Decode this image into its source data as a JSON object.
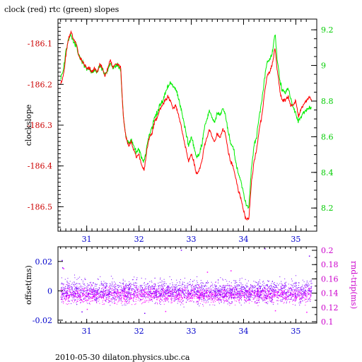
{
  "title": "clock (red) rtc (green) slopes",
  "footer": "2010-05-30  dilaton.physics.ubc.ca",
  "colors": {
    "clock": "#ff0000",
    "rtc": "#00ee00",
    "offset": "#7a00ff",
    "roundtrip": "#ff00ff",
    "top_left_axis": "#cc0000",
    "top_right_axis": "#00cc00",
    "bottom_left_axis": "#0000cc",
    "bottom_right_axis": "#cc00cc",
    "frame": "#000000"
  },
  "chart_data": [
    {
      "type": "line",
      "ylabel": "clockslope",
      "ylabel_right": "",
      "xlim": [
        30.45,
        35.4
      ],
      "ylim": [
        -186.56,
        -186.04
      ],
      "ylim_right": [
        8.07,
        9.26
      ],
      "x_ticks": [
        "31",
        "32",
        "33",
        "34",
        "35"
      ],
      "y_ticks": [
        "-186.1",
        "-186.2",
        "-186.3",
        "-186.4",
        "-186.5"
      ],
      "y_ticks_right": [
        "9.2",
        "9",
        "8.8",
        "8.6",
        "8.4",
        "8.2"
      ],
      "series": [
        {
          "name": "clock (red)",
          "axis": "left",
          "x": [
            30.5,
            30.55,
            30.6,
            30.65,
            30.7,
            30.75,
            30.8,
            30.85,
            30.9,
            30.95,
            31.0,
            31.05,
            31.1,
            31.15,
            31.2,
            31.25,
            31.3,
            31.35,
            31.4,
            31.45,
            31.5,
            31.55,
            31.6,
            31.65,
            31.7,
            31.75,
            31.8,
            31.85,
            31.9,
            31.95,
            32.0,
            32.05,
            32.1,
            32.15,
            32.2,
            32.25,
            32.3,
            32.35,
            32.4,
            32.45,
            32.5,
            32.55,
            32.6,
            32.65,
            32.7,
            32.75,
            32.8,
            32.85,
            32.9,
            32.95,
            33.0,
            33.05,
            33.1,
            33.15,
            33.2,
            33.25,
            33.3,
            33.35,
            33.4,
            33.45,
            33.5,
            33.55,
            33.6,
            33.65,
            33.7,
            33.75,
            33.8,
            33.85,
            33.9,
            33.95,
            34.0,
            34.05,
            34.1,
            34.15,
            34.2,
            34.25,
            34.3,
            34.35,
            34.4,
            34.45,
            34.5,
            34.55,
            34.6,
            34.65,
            34.7,
            34.75,
            34.8,
            34.85,
            34.9,
            34.95,
            35.0,
            35.05,
            35.1,
            35.15,
            35.2,
            35.25,
            35.3
          ],
          "values": [
            -186.2,
            -186.18,
            -186.13,
            -186.09,
            -186.07,
            -186.09,
            -186.1,
            -186.13,
            -186.14,
            -186.15,
            -186.16,
            -186.16,
            -186.17,
            -186.16,
            -186.17,
            -186.15,
            -186.16,
            -186.18,
            -186.16,
            -186.14,
            -186.16,
            -186.15,
            -186.15,
            -186.16,
            -186.28,
            -186.33,
            -186.35,
            -186.34,
            -186.36,
            -186.38,
            -186.37,
            -186.4,
            -186.41,
            -186.36,
            -186.33,
            -186.32,
            -186.29,
            -186.28,
            -186.26,
            -186.25,
            -186.24,
            -186.23,
            -186.24,
            -186.26,
            -186.25,
            -186.27,
            -186.3,
            -186.33,
            -186.36,
            -186.39,
            -186.37,
            -186.39,
            -186.42,
            -186.41,
            -186.39,
            -186.35,
            -186.33,
            -186.31,
            -186.33,
            -186.34,
            -186.32,
            -186.33,
            -186.31,
            -186.32,
            -186.36,
            -186.39,
            -186.4,
            -186.43,
            -186.46,
            -186.48,
            -186.51,
            -186.53,
            -186.53,
            -186.44,
            -186.39,
            -186.36,
            -186.31,
            -186.28,
            -186.22,
            -186.18,
            -186.17,
            -186.15,
            -186.11,
            -186.17,
            -186.22,
            -186.24,
            -186.24,
            -186.23,
            -186.25,
            -186.25,
            -186.24,
            -186.28,
            -186.26,
            -186.25,
            -186.24,
            -186.23,
            -186.24
          ]
        },
        {
          "name": "rtc (green)",
          "axis": "right",
          "x": [
            30.5,
            30.55,
            30.6,
            30.65,
            30.7,
            30.75,
            30.8,
            30.85,
            30.9,
            30.95,
            31.0,
            31.05,
            31.1,
            31.15,
            31.2,
            31.25,
            31.3,
            31.35,
            31.4,
            31.45,
            31.5,
            31.55,
            31.6,
            31.65,
            31.7,
            31.75,
            31.8,
            31.85,
            31.9,
            31.95,
            32.0,
            32.05,
            32.1,
            32.15,
            32.2,
            32.25,
            32.3,
            32.35,
            32.4,
            32.45,
            32.5,
            32.55,
            32.6,
            32.65,
            32.7,
            32.75,
            32.8,
            32.85,
            32.9,
            32.95,
            33.0,
            33.05,
            33.1,
            33.15,
            33.2,
            33.25,
            33.3,
            33.35,
            33.4,
            33.45,
            33.5,
            33.55,
            33.6,
            33.65,
            33.7,
            33.75,
            33.8,
            33.85,
            33.9,
            33.95,
            34.0,
            34.05,
            34.1,
            34.15,
            34.2,
            34.25,
            34.3,
            34.35,
            34.4,
            34.45,
            34.5,
            34.55,
            34.6,
            34.65,
            34.7,
            34.75,
            34.8,
            34.85,
            34.9,
            34.95,
            35.0,
            35.05,
            35.1,
            35.15,
            35.2,
            35.25,
            35.3
          ],
          "values": [
            8.92,
            8.97,
            9.08,
            9.15,
            9.17,
            9.13,
            9.11,
            9.05,
            9.03,
            9.0,
            8.98,
            8.98,
            8.96,
            8.97,
            8.96,
            9.0,
            8.98,
            8.95,
            8.97,
            9.02,
            8.98,
            9.0,
            9.0,
            8.97,
            8.72,
            8.6,
            8.56,
            8.58,
            8.55,
            8.51,
            8.53,
            8.48,
            8.46,
            8.55,
            8.62,
            8.65,
            8.72,
            8.73,
            8.78,
            8.8,
            8.84,
            8.88,
            8.9,
            8.88,
            8.87,
            8.83,
            8.76,
            8.7,
            8.62,
            8.55,
            8.6,
            8.55,
            8.48,
            8.5,
            8.55,
            8.65,
            8.7,
            8.75,
            8.7,
            8.68,
            8.74,
            8.72,
            8.76,
            8.73,
            8.64,
            8.56,
            8.54,
            8.46,
            8.39,
            8.35,
            8.28,
            8.22,
            8.2,
            8.42,
            8.55,
            8.6,
            8.72,
            8.8,
            8.93,
            9.02,
            9.03,
            9.07,
            9.18,
            9.02,
            8.9,
            8.86,
            8.85,
            8.87,
            8.82,
            8.76,
            8.73,
            8.68,
            8.71,
            8.74,
            8.75,
            8.76,
            8.76
          ]
        }
      ]
    },
    {
      "type": "scatter",
      "ylabel": "offset(ms)",
      "ylabel_right": "rnd-trip(ms)",
      "xlim": [
        30.45,
        35.4
      ],
      "ylim": [
        -0.022,
        0.03
      ],
      "ylim_right": [
        0.098,
        0.205
      ],
      "x_ticks": [
        "31",
        "32",
        "33",
        "34",
        "35"
      ],
      "y_ticks": [
        "0.02",
        "0",
        "-0.02"
      ],
      "y_ticks_right": [
        "0.2",
        "0.18",
        "0.16",
        "0.14",
        "0.12",
        "0.1"
      ],
      "series": [
        {
          "name": "offset",
          "axis": "left",
          "x_range": [
            30.5,
            35.3
          ],
          "center": 0.0,
          "spread": 0.008,
          "outliers": [
            [
              30.52,
              0.021
            ],
            [
              30.53,
              0.016
            ],
            [
              30.9,
              -0.014
            ],
            [
              32.1,
              -0.015
            ],
            [
              32.8,
              0.028
            ],
            [
              34.4,
              0.029
            ],
            [
              35.25,
              0.024
            ]
          ]
        },
        {
          "name": "round trip",
          "axis": "right",
          "x_range": [
            30.5,
            35.3
          ],
          "center": 0.138,
          "spread": 0.012,
          "outliers": [
            [
              30.55,
              0.175
            ],
            [
              31.0,
              0.118
            ],
            [
              32.5,
              0.115
            ],
            [
              33.3,
              0.17
            ],
            [
              33.75,
              0.172
            ],
            [
              34.6,
              0.116
            ],
            [
              35.2,
              0.114
            ]
          ]
        }
      ]
    }
  ]
}
